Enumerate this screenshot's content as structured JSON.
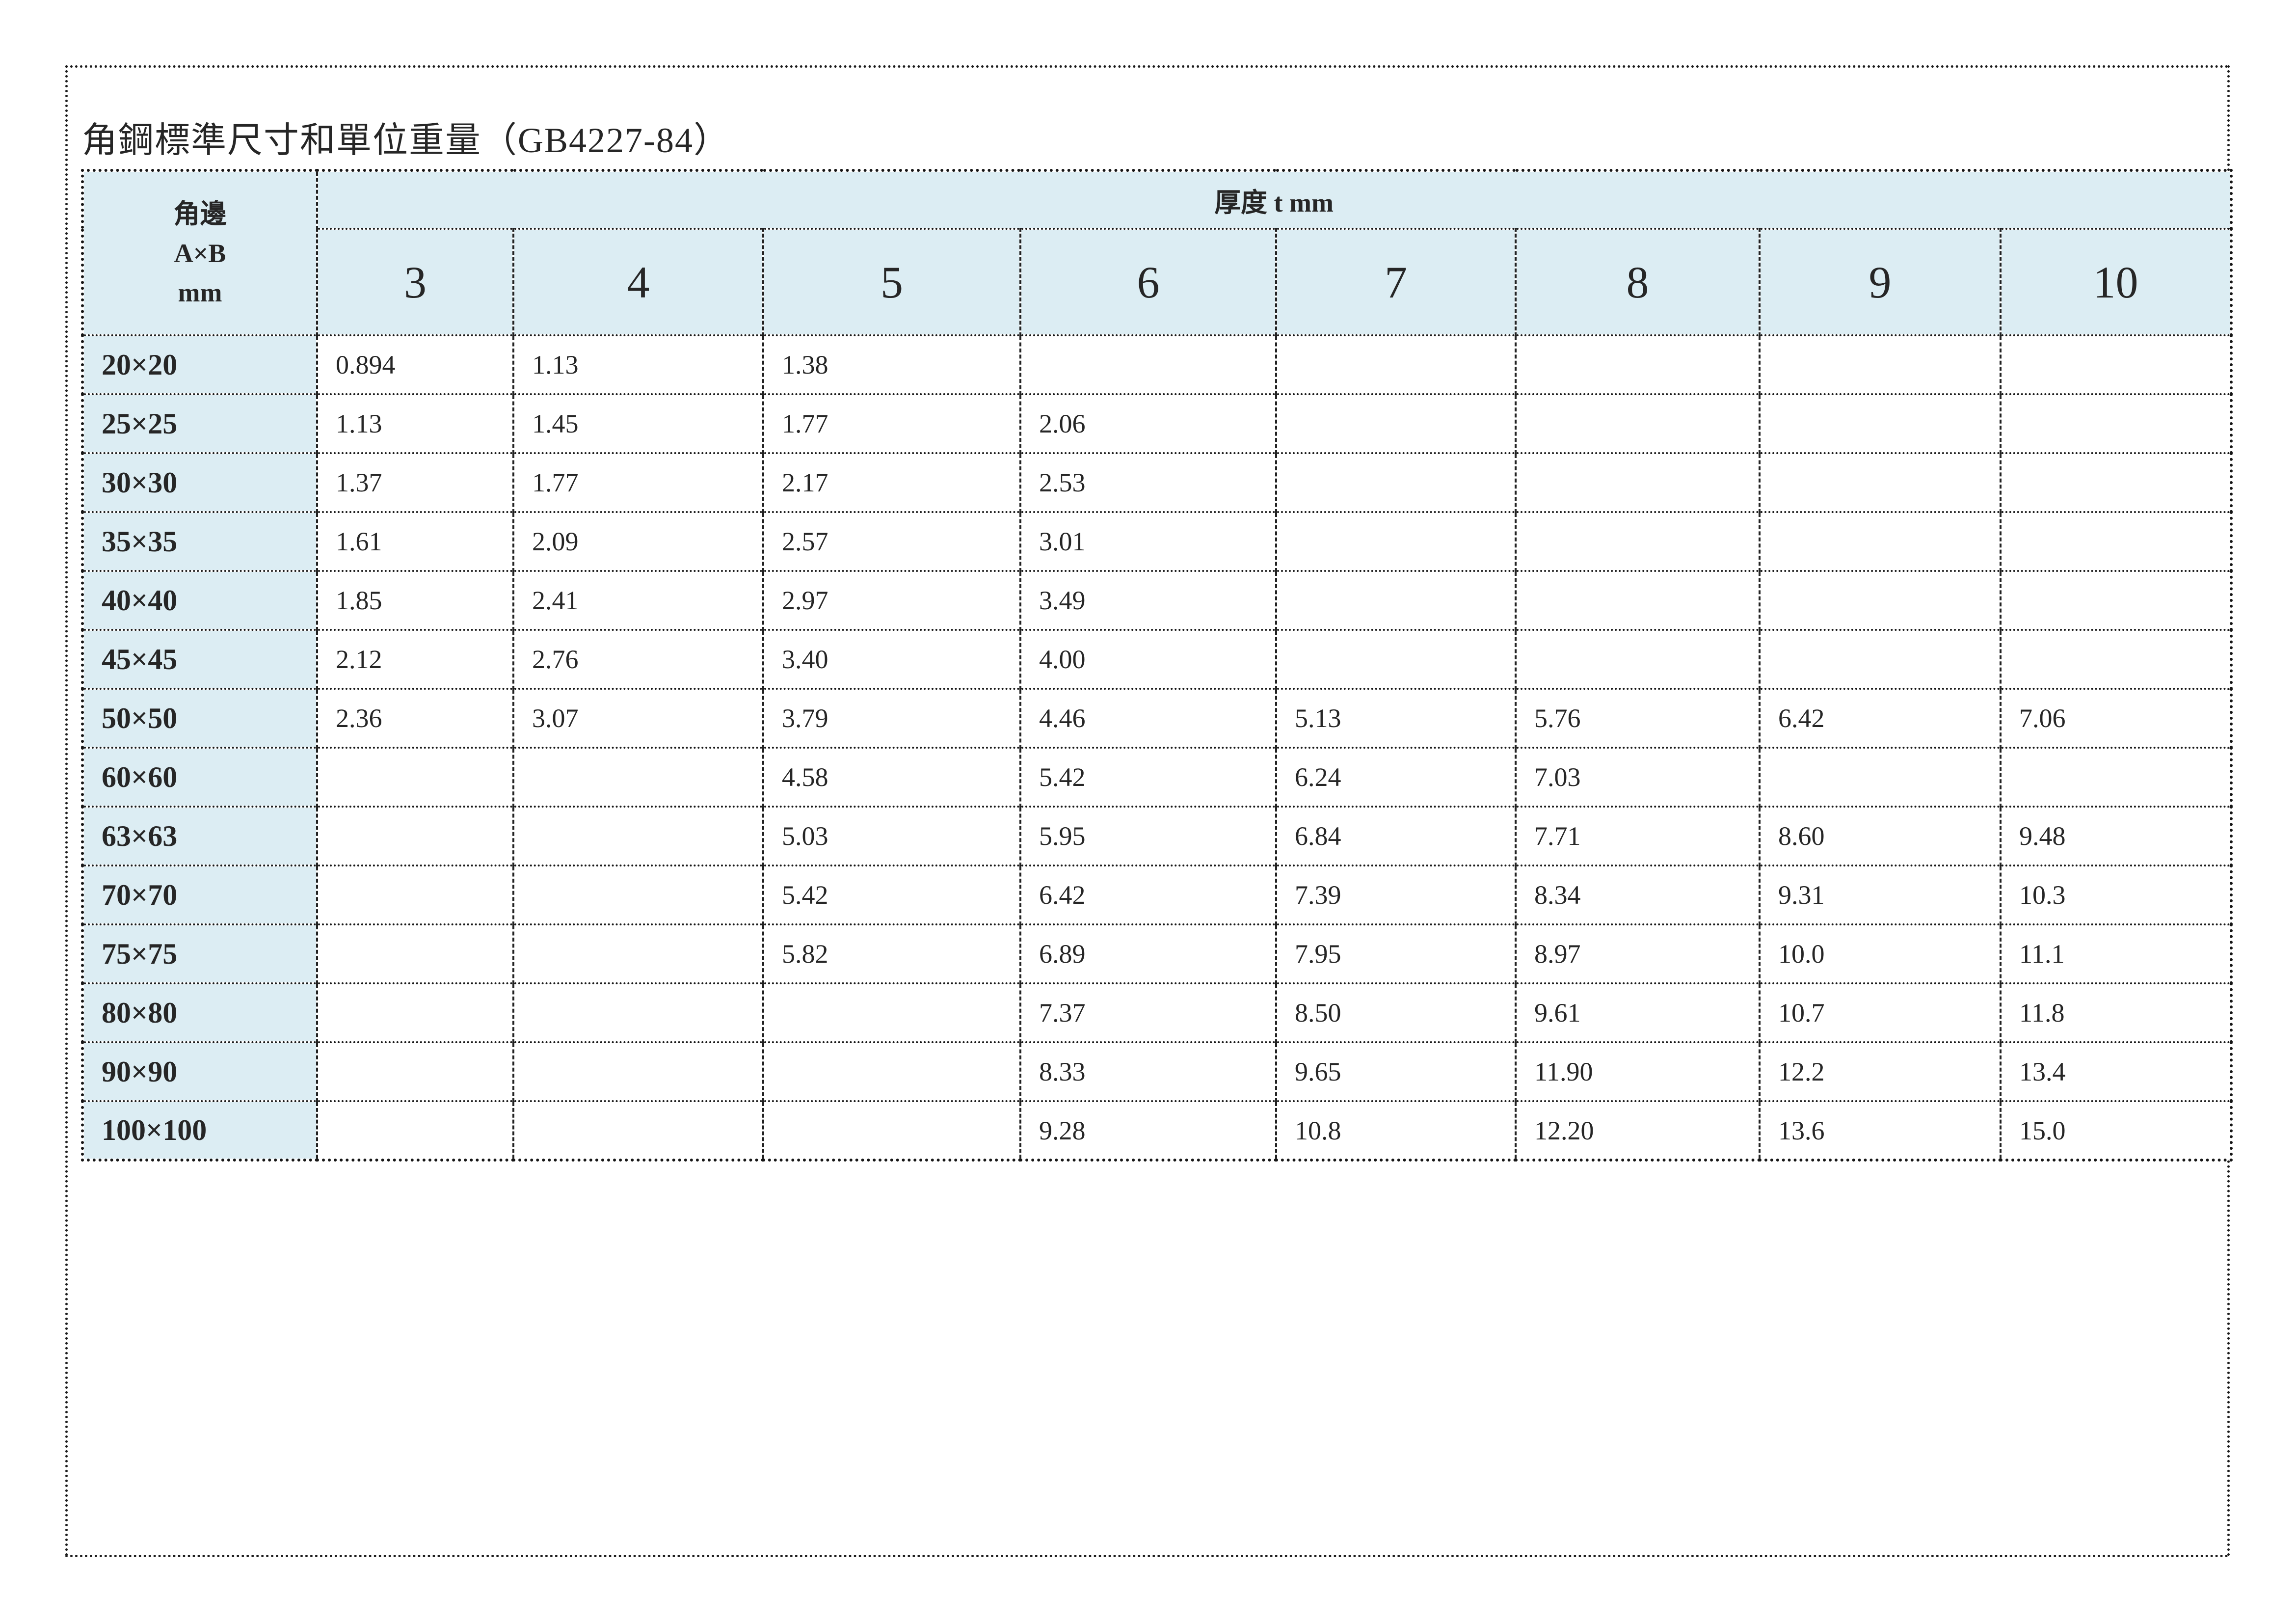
{
  "page": {
    "title": "角鋼標準尺寸和單位重量（GB4227-84）"
  },
  "table": {
    "corner_header": {
      "lines": [
        "角邊",
        "A×B",
        "mm"
      ]
    },
    "thickness_header": "厚度 t mm",
    "thickness_columns": [
      "3",
      "4",
      "5",
      "6",
      "7",
      "8",
      "9",
      "10"
    ],
    "rows": [
      {
        "label": "20×20",
        "values": [
          "0.894",
          "1.13",
          "1.38",
          "",
          "",
          "",
          "",
          ""
        ]
      },
      {
        "label": "25×25",
        "values": [
          "1.13",
          "1.45",
          "1.77",
          "2.06",
          "",
          "",
          "",
          ""
        ]
      },
      {
        "label": "30×30",
        "values": [
          "1.37",
          "1.77",
          "2.17",
          "2.53",
          "",
          "",
          "",
          ""
        ]
      },
      {
        "label": "35×35",
        "values": [
          "1.61",
          "2.09",
          "2.57",
          "3.01",
          "",
          "",
          "",
          ""
        ]
      },
      {
        "label": "40×40",
        "values": [
          "1.85",
          "2.41",
          "2.97",
          "3.49",
          "",
          "",
          "",
          ""
        ]
      },
      {
        "label": "45×45",
        "values": [
          "2.12",
          "2.76",
          "3.40",
          "4.00",
          "",
          "",
          "",
          ""
        ]
      },
      {
        "label": "50×50",
        "values": [
          "2.36",
          "3.07",
          "3.79",
          "4.46",
          "5.13",
          "5.76",
          "6.42",
          "7.06"
        ]
      },
      {
        "label": "60×60",
        "values": [
          "",
          "",
          "4.58",
          "5.42",
          "6.24",
          "7.03",
          "",
          ""
        ]
      },
      {
        "label": "63×63",
        "values": [
          "",
          "",
          "5.03",
          "5.95",
          "6.84",
          "7.71",
          "8.60",
          "9.48"
        ]
      },
      {
        "label": "70×70",
        "values": [
          "",
          "",
          "5.42",
          "6.42",
          "7.39",
          "8.34",
          "9.31",
          "10.3"
        ]
      },
      {
        "label": "75×75",
        "values": [
          "",
          "",
          "5.82",
          "6.89",
          "7.95",
          "8.97",
          "10.0",
          "11.1"
        ]
      },
      {
        "label": "80×80",
        "values": [
          "",
          "",
          "",
          "7.37",
          "8.50",
          "9.61",
          "10.7",
          "11.8"
        ]
      },
      {
        "label": "90×90",
        "values": [
          "",
          "",
          "",
          "8.33",
          "9.65",
          "11.90",
          "12.2",
          "13.4"
        ]
      },
      {
        "label": "100×100",
        "values": [
          "",
          "",
          "",
          "9.28",
          "10.8",
          "12.20",
          "13.6",
          "15.0"
        ]
      }
    ]
  },
  "colors": {
    "header_bg": "#dcedf3",
    "text": "#262626",
    "border": "#1a1a1a",
    "page_background": "#ffffff"
  }
}
